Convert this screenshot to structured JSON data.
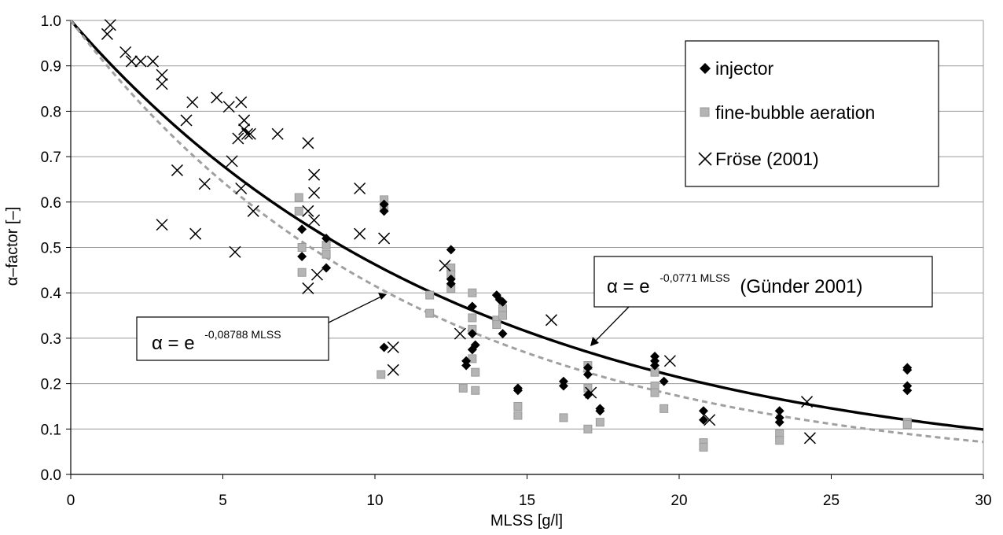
{
  "chart_data": {
    "type": "scatter",
    "title": "",
    "xlabel": "MLSS [g/l]",
    "ylabel": "α–factor [–]",
    "xlim": [
      0,
      30
    ],
    "ylim": [
      0,
      1
    ],
    "xticks": [
      "0",
      "5",
      "10",
      "15",
      "20",
      "25",
      "30"
    ],
    "yticks": [
      "0.0",
      "0.1",
      "0.2",
      "0.3",
      "0.4",
      "0.5",
      "0.6",
      "0.7",
      "0.8",
      "0.9",
      "1.0"
    ],
    "grid": "horizontal",
    "legend_position": "top-right",
    "series": [
      {
        "name": "injector",
        "marker": "diamond",
        "color": "#000000",
        "points": [
          [
            7.6,
            0.54
          ],
          [
            7.6,
            0.48
          ],
          [
            8.4,
            0.455
          ],
          [
            8.4,
            0.52
          ],
          [
            10.3,
            0.58
          ],
          [
            10.3,
            0.595
          ],
          [
            10.3,
            0.28
          ],
          [
            12.5,
            0.495
          ],
          [
            12.5,
            0.43
          ],
          [
            12.5,
            0.42
          ],
          [
            13.0,
            0.24
          ],
          [
            13.0,
            0.25
          ],
          [
            13.2,
            0.37
          ],
          [
            13.2,
            0.31
          ],
          [
            13.2,
            0.275
          ],
          [
            13.3,
            0.285
          ],
          [
            14.0,
            0.395
          ],
          [
            14.1,
            0.385
          ],
          [
            14.2,
            0.38
          ],
          [
            14.2,
            0.31
          ],
          [
            14.7,
            0.19
          ],
          [
            14.7,
            0.185
          ],
          [
            16.2,
            0.205
          ],
          [
            16.2,
            0.195
          ],
          [
            17.0,
            0.235
          ],
          [
            17.0,
            0.22
          ],
          [
            17.0,
            0.175
          ],
          [
            17.4,
            0.145
          ],
          [
            17.4,
            0.14
          ],
          [
            19.2,
            0.26
          ],
          [
            19.2,
            0.25
          ],
          [
            19.2,
            0.24
          ],
          [
            19.5,
            0.205
          ],
          [
            20.8,
            0.14
          ],
          [
            20.8,
            0.12
          ],
          [
            23.3,
            0.14
          ],
          [
            23.3,
            0.125
          ],
          [
            23.3,
            0.115
          ],
          [
            27.5,
            0.235
          ],
          [
            27.5,
            0.23
          ],
          [
            27.5,
            0.195
          ],
          [
            27.5,
            0.185
          ]
        ]
      },
      {
        "name": "fine-bubble aeration",
        "marker": "square",
        "color": "#b4b4b4",
        "points": [
          [
            7.5,
            0.61
          ],
          [
            7.5,
            0.58
          ],
          [
            7.6,
            0.5
          ],
          [
            7.6,
            0.445
          ],
          [
            8.4,
            0.505
          ],
          [
            8.4,
            0.485
          ],
          [
            10.3,
            0.605
          ],
          [
            10.3,
            0.59
          ],
          [
            10.2,
            0.22
          ],
          [
            11.8,
            0.395
          ],
          [
            11.8,
            0.355
          ],
          [
            12.5,
            0.455
          ],
          [
            12.5,
            0.44
          ],
          [
            12.5,
            0.41
          ],
          [
            12.9,
            0.19
          ],
          [
            13.2,
            0.4
          ],
          [
            13.2,
            0.345
          ],
          [
            13.2,
            0.32
          ],
          [
            13.2,
            0.255
          ],
          [
            13.3,
            0.225
          ],
          [
            13.3,
            0.185
          ],
          [
            14.0,
            0.34
          ],
          [
            14.0,
            0.33
          ],
          [
            14.2,
            0.365
          ],
          [
            14.2,
            0.35
          ],
          [
            14.7,
            0.15
          ],
          [
            14.7,
            0.13
          ],
          [
            16.2,
            0.125
          ],
          [
            17.0,
            0.24
          ],
          [
            17.0,
            0.19
          ],
          [
            17.0,
            0.1
          ],
          [
            17.4,
            0.115
          ],
          [
            19.2,
            0.225
          ],
          [
            19.2,
            0.195
          ],
          [
            19.2,
            0.18
          ],
          [
            19.5,
            0.145
          ],
          [
            20.8,
            0.07
          ],
          [
            20.8,
            0.06
          ],
          [
            23.3,
            0.09
          ],
          [
            23.3,
            0.075
          ],
          [
            27.5,
            0.115
          ],
          [
            27.5,
            0.11
          ]
        ]
      },
      {
        "name": "Fröse (2001)",
        "marker": "x",
        "color": "#000000",
        "points": [
          [
            1.2,
            0.97
          ],
          [
            1.3,
            0.99
          ],
          [
            1.8,
            0.93
          ],
          [
            2.0,
            0.91
          ],
          [
            2.3,
            0.91
          ],
          [
            2.7,
            0.91
          ],
          [
            3.0,
            0.88
          ],
          [
            3.0,
            0.86
          ],
          [
            3.0,
            0.55
          ],
          [
            3.5,
            0.67
          ],
          [
            3.8,
            0.78
          ],
          [
            4.0,
            0.82
          ],
          [
            4.1,
            0.53
          ],
          [
            4.4,
            0.64
          ],
          [
            4.8,
            0.83
          ],
          [
            5.2,
            0.81
          ],
          [
            5.3,
            0.69
          ],
          [
            5.4,
            0.49
          ],
          [
            5.5,
            0.74
          ],
          [
            5.6,
            0.82
          ],
          [
            5.6,
            0.63
          ],
          [
            5.7,
            0.78
          ],
          [
            5.7,
            0.76
          ],
          [
            5.8,
            0.75
          ],
          [
            5.9,
            0.75
          ],
          [
            6.0,
            0.58
          ],
          [
            6.8,
            0.75
          ],
          [
            7.8,
            0.73
          ],
          [
            7.8,
            0.58
          ],
          [
            7.8,
            0.41
          ],
          [
            8.0,
            0.66
          ],
          [
            8.0,
            0.62
          ],
          [
            8.0,
            0.56
          ],
          [
            8.1,
            0.44
          ],
          [
            9.5,
            0.63
          ],
          [
            9.5,
            0.53
          ],
          [
            10.3,
            0.52
          ],
          [
            10.6,
            0.28
          ],
          [
            10.6,
            0.23
          ],
          [
            12.3,
            0.46
          ],
          [
            12.8,
            0.31
          ],
          [
            15.8,
            0.34
          ],
          [
            17.1,
            0.18
          ],
          [
            19.7,
            0.25
          ],
          [
            21.0,
            0.12
          ],
          [
            24.2,
            0.16
          ],
          [
            24.3,
            0.08
          ]
        ]
      },
      {
        "name": "α = e -0,0771 MLSS (Günder 2001)",
        "type": "line",
        "style": "solid",
        "color": "#000000",
        "equation": "exp(-0.0771*x)",
        "coef": -0.0771
      },
      {
        "name": "α = e -0,08788 MLSS",
        "type": "line",
        "style": "dashed",
        "color": "#a0a0a0",
        "equation": "exp(-0.08788*x)",
        "coef": -0.08788
      }
    ],
    "annotations": [
      {
        "prefix": "α = e",
        "superscript": "-0,0771 MLSS",
        "suffix": " (Günder 2001)",
        "points_to": [
          17.0,
          0.28
        ]
      },
      {
        "prefix": "α = e",
        "superscript": "-0,08788 MLSS",
        "suffix": "",
        "points_to": [
          10.3,
          0.395
        ]
      }
    ]
  },
  "legend": {
    "injector": "injector",
    "fine_bubble": "fine-bubble aeration",
    "froese": "Fröse (2001)"
  },
  "annotations": {
    "gunder": {
      "prefix": "α = e",
      "superscript": "-0,0771 MLSS",
      "suffix": "(Günder 2001)"
    },
    "fit": {
      "prefix": "α = e",
      "superscript": "-0,08788 MLSS"
    }
  }
}
